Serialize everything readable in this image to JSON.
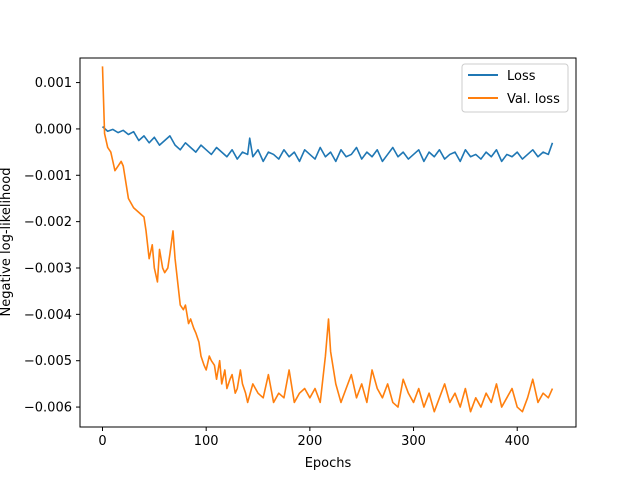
{
  "chart_data": {
    "type": "line",
    "title": "",
    "xlabel": "Epochs",
    "ylabel": "Negative log-likelihood",
    "xlim": [
      -21.7,
      456.7
    ],
    "ylim": [
      -0.00643,
      0.00153
    ],
    "x_ticks": [
      0,
      100,
      200,
      300,
      400
    ],
    "x_tick_labels": [
      "0",
      "100",
      "200",
      "300",
      "400"
    ],
    "y_ticks": [
      0.001,
      0.0,
      -0.001,
      -0.002,
      -0.003,
      -0.004,
      -0.005,
      -0.006
    ],
    "y_tick_labels": [
      "0.001",
      "0.000",
      "−0.001",
      "−0.002",
      "−0.003",
      "−0.004",
      "−0.005",
      "−0.006"
    ],
    "grid": false,
    "legend_position": "top-right",
    "series": [
      {
        "name": "Loss",
        "color": "#1f77b4",
        "x": [
          0,
          5,
          10,
          15,
          20,
          25,
          30,
          35,
          40,
          45,
          50,
          55,
          60,
          65,
          70,
          75,
          80,
          85,
          90,
          95,
          100,
          105,
          110,
          115,
          120,
          125,
          130,
          135,
          140,
          142,
          145,
          150,
          155,
          160,
          165,
          170,
          175,
          180,
          185,
          190,
          195,
          200,
          205,
          210,
          215,
          220,
          225,
          230,
          235,
          240,
          245,
          250,
          255,
          260,
          265,
          270,
          275,
          280,
          285,
          290,
          295,
          300,
          305,
          310,
          315,
          320,
          325,
          330,
          335,
          340,
          345,
          350,
          355,
          360,
          365,
          370,
          375,
          380,
          385,
          390,
          395,
          400,
          405,
          410,
          415,
          420,
          425,
          430,
          434
        ],
        "values": [
          5e-05,
          -5e-05,
          -1e-05,
          -8e-05,
          -3e-05,
          -0.00012,
          -6e-05,
          -0.00025,
          -0.00015,
          -0.0003,
          -0.00018,
          -0.00035,
          -0.00025,
          -0.00015,
          -0.00035,
          -0.00045,
          -0.0003,
          -0.0004,
          -0.0005,
          -0.00035,
          -0.00045,
          -0.00055,
          -0.0004,
          -0.0005,
          -0.0006,
          -0.00045,
          -0.00065,
          -0.0005,
          -0.00055,
          -0.0002,
          -0.0006,
          -0.00045,
          -0.0007,
          -0.0005,
          -0.00055,
          -0.00065,
          -0.00045,
          -0.0006,
          -0.0005,
          -0.0007,
          -0.00045,
          -0.00055,
          -0.00065,
          -0.0004,
          -0.0006,
          -0.0005,
          -0.0007,
          -0.00045,
          -0.0006,
          -0.00055,
          -0.0004,
          -0.00065,
          -0.0005,
          -0.0006,
          -0.00045,
          -0.0007,
          -0.00055,
          -0.0004,
          -0.0006,
          -0.0005,
          -0.00065,
          -0.00055,
          -0.00045,
          -0.0007,
          -0.0005,
          -0.0006,
          -0.00045,
          -0.00065,
          -0.00055,
          -0.0005,
          -0.0007,
          -0.00045,
          -0.0006,
          -0.00055,
          -0.00065,
          -0.0005,
          -0.0006,
          -0.00045,
          -0.0007,
          -0.00055,
          -0.0006,
          -0.0005,
          -0.00065,
          -0.00055,
          -0.00045,
          -0.0006,
          -0.0005,
          -0.00055,
          -0.0003
        ]
      },
      {
        "name": "Val. loss",
        "color": "#ff7f0e",
        "x": [
          0,
          2,
          5,
          8,
          10,
          12,
          15,
          18,
          20,
          25,
          30,
          35,
          40,
          42,
          45,
          48,
          50,
          53,
          55,
          58,
          60,
          63,
          65,
          68,
          70,
          73,
          75,
          78,
          80,
          83,
          85,
          88,
          90,
          93,
          95,
          98,
          100,
          103,
          105,
          108,
          110,
          113,
          115,
          118,
          120,
          123,
          125,
          128,
          130,
          133,
          135,
          138,
          140,
          145,
          150,
          155,
          160,
          165,
          170,
          175,
          180,
          185,
          190,
          195,
          200,
          205,
          210,
          215,
          218,
          220,
          225,
          230,
          235,
          240,
          245,
          250,
          255,
          260,
          265,
          270,
          275,
          280,
          285,
          290,
          295,
          300,
          305,
          310,
          315,
          320,
          325,
          330,
          335,
          340,
          345,
          350,
          355,
          360,
          365,
          370,
          375,
          380,
          385,
          390,
          395,
          400,
          405,
          410,
          415,
          420,
          425,
          430,
          434
        ],
        "values": [
          0.00135,
          -0.0001,
          -0.0004,
          -0.0005,
          -0.0007,
          -0.0009,
          -0.0008,
          -0.0007,
          -0.0008,
          -0.0015,
          -0.0017,
          -0.0018,
          -0.0019,
          -0.0022,
          -0.0028,
          -0.0025,
          -0.003,
          -0.0033,
          -0.0026,
          -0.003,
          -0.0031,
          -0.003,
          -0.0027,
          -0.0022,
          -0.0028,
          -0.0034,
          -0.0038,
          -0.0039,
          -0.0038,
          -0.0042,
          -0.0041,
          -0.0043,
          -0.0044,
          -0.0046,
          -0.0049,
          -0.0051,
          -0.0052,
          -0.0049,
          -0.005,
          -0.0051,
          -0.0054,
          -0.005,
          -0.0055,
          -0.0052,
          -0.0056,
          -0.0054,
          -0.0053,
          -0.0057,
          -0.0056,
          -0.0052,
          -0.0055,
          -0.0057,
          -0.0059,
          -0.0055,
          -0.0057,
          -0.0058,
          -0.0053,
          -0.0059,
          -0.0057,
          -0.0058,
          -0.0052,
          -0.0059,
          -0.0057,
          -0.0056,
          -0.0058,
          -0.0056,
          -0.0059,
          -0.0049,
          -0.0041,
          -0.0048,
          -0.0055,
          -0.0059,
          -0.0056,
          -0.0053,
          -0.0058,
          -0.0055,
          -0.0059,
          -0.0052,
          -0.0056,
          -0.0058,
          -0.0055,
          -0.0059,
          -0.006,
          -0.0054,
          -0.0057,
          -0.0059,
          -0.0056,
          -0.006,
          -0.0057,
          -0.0061,
          -0.0058,
          -0.0055,
          -0.0059,
          -0.0057,
          -0.006,
          -0.0056,
          -0.0061,
          -0.0058,
          -0.006,
          -0.0057,
          -0.0059,
          -0.0055,
          -0.006,
          -0.0058,
          -0.0056,
          -0.006,
          -0.0061,
          -0.0058,
          -0.0054,
          -0.0059,
          -0.0057,
          -0.0058,
          -0.0056
        ]
      }
    ]
  }
}
